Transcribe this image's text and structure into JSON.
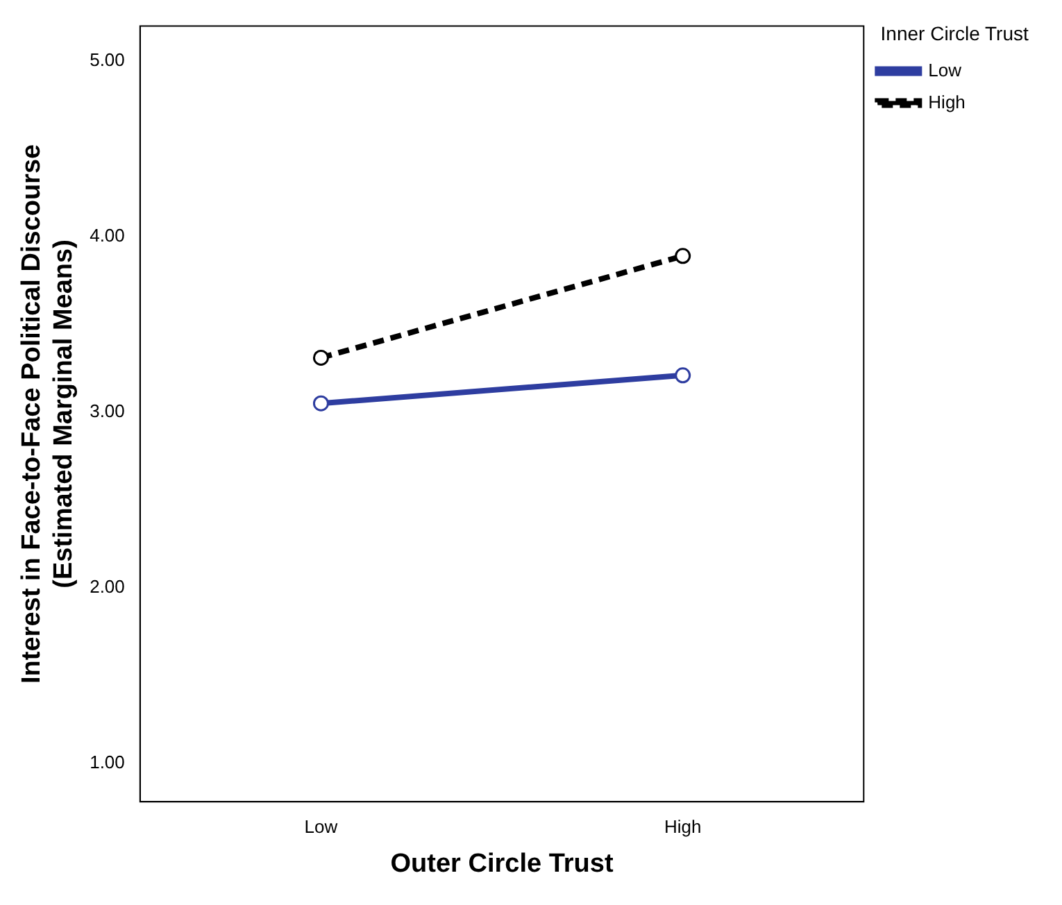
{
  "chart_data": {
    "type": "line",
    "xlabel": "Outer Circle Trust",
    "ylabel": "Interest in Face-to-Face Political Discourse\n(Estimated Marginal Means)",
    "legend_title": "Inner Circle Trust",
    "legend": "top right",
    "marker": "circle",
    "categories": [
      "Low",
      "High"
    ],
    "series": [
      {
        "name": "Low",
        "color": "#2e3da0",
        "values": [
          3.05,
          3.21
        ],
        "line_style": "solid"
      },
      {
        "name": "High",
        "color": "#000000",
        "values": [
          3.31,
          3.89
        ],
        "line_style": "dashed"
      }
    ],
    "ylim": [
      0.78,
      5.2
    ],
    "yticks": [
      {
        "value": 1,
        "label": "1.00"
      },
      {
        "value": 2,
        "label": "2.00"
      },
      {
        "value": 3,
        "label": "3.00"
      },
      {
        "value": 4,
        "label": "4.00"
      },
      {
        "value": 5,
        "label": "5.00"
      }
    ],
    "grid": false
  }
}
